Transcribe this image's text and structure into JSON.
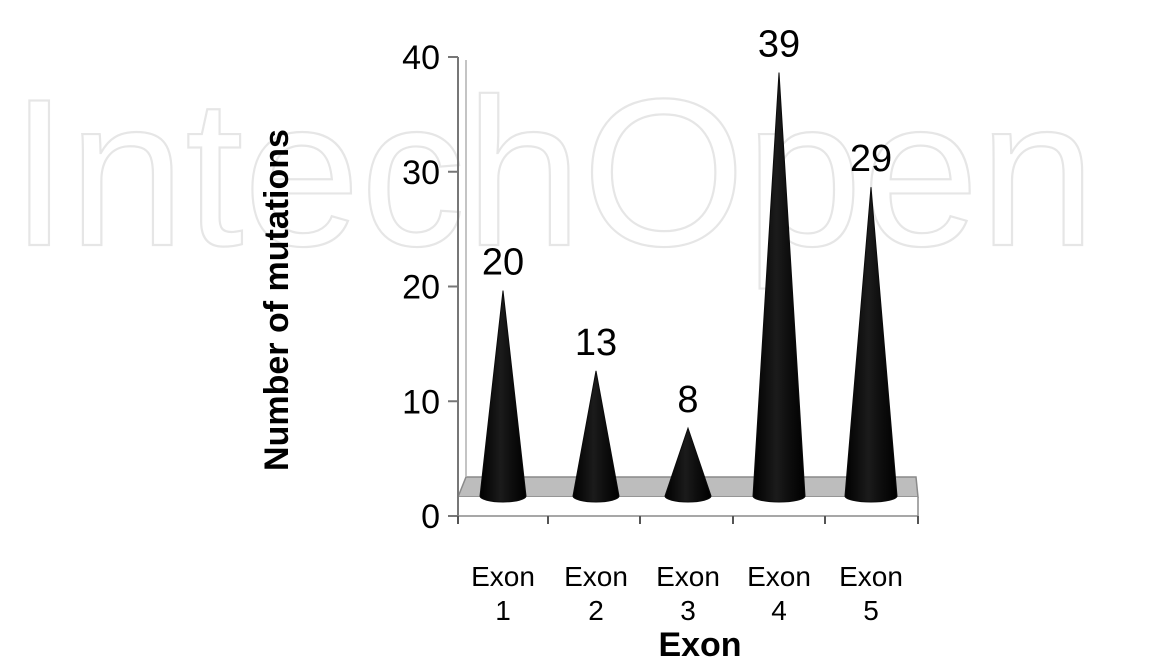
{
  "watermark": {
    "text": "IntechOpen",
    "color": "#e6e6e6"
  },
  "chart_data": {
    "type": "bar",
    "shape": "cone",
    "categories": [
      {
        "line1": "Exon",
        "line2": "1"
      },
      {
        "line1": "Exon",
        "line2": "2"
      },
      {
        "line1": "Exon",
        "line2": "3"
      },
      {
        "line1": "Exon",
        "line2": "4"
      },
      {
        "line1": "Exon",
        "line2": "5"
      }
    ],
    "values": [
      20,
      13,
      8,
      39,
      29
    ],
    "data_labels": [
      "20",
      "13",
      "8",
      "39",
      "29"
    ],
    "xlabel": "Exon",
    "ylabel": "Number of mutations",
    "ylim": [
      0,
      40
    ],
    "yticks": [
      "0",
      "10",
      "20",
      "30",
      "40"
    ],
    "grid": false,
    "legend": "none",
    "colors": {
      "cone": "#0b0b0b",
      "floor": "#bdbdbd",
      "axis": "#777777"
    }
  }
}
